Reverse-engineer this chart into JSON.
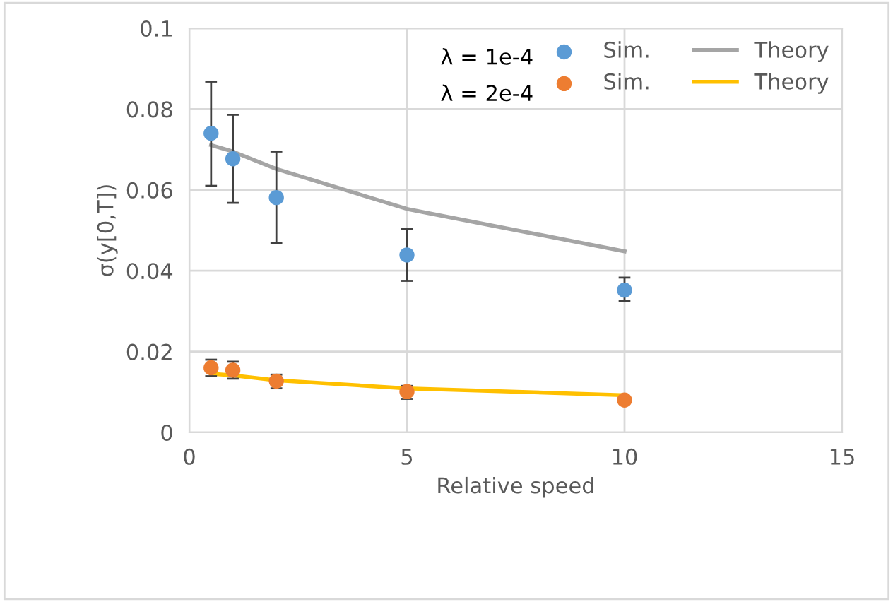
{
  "chart_data": {
    "type": "scatter",
    "xlabel": "Relative speed",
    "ylabel": "σ(y[0,T])",
    "x": [
      0.5,
      1,
      2,
      5,
      10
    ],
    "series": [
      {
        "name": "Sim.",
        "marker": "circle",
        "color": "#5b9bd5",
        "values": [
          0.074,
          0.0677,
          0.0581,
          0.0439,
          0.0352
        ],
        "errors": [
          [
            0.061,
            0.0868
          ],
          [
            0.0568,
            0.0786
          ],
          [
            0.0469,
            0.0695
          ],
          [
            0.0375,
            0.0504
          ],
          [
            0.0325,
            0.0383
          ]
        ]
      },
      {
        "name": "Theory",
        "type": "line",
        "color": "#a5a5a5",
        "values": [
          0.0711,
          0.0695,
          0.0652,
          0.0553,
          0.0448
        ]
      },
      {
        "name": "Sim.",
        "marker": "circle",
        "color": "#ed7d31",
        "values": [
          0.016,
          0.0154,
          0.0127,
          0.0101,
          0.008
        ],
        "errors": [
          [
            0.0139,
            0.018
          ],
          [
            0.0133,
            0.0175
          ],
          [
            0.0109,
            0.0143
          ],
          [
            0.0083,
            0.0115
          ],
          null
        ]
      },
      {
        "name": "Theory",
        "type": "line",
        "color": "#ffc000",
        "values": [
          0.0145,
          0.0141,
          0.0129,
          0.0109,
          0.0092
        ]
      }
    ],
    "annotations": [
      "λ = 1e-4",
      "λ = 2e-4"
    ],
    "xlim": [
      0,
      15
    ],
    "xticks": [
      0,
      5,
      10,
      15
    ],
    "ylim": [
      0,
      0.1
    ],
    "yticks": [
      0,
      0.02,
      0.04,
      0.06,
      0.08,
      0.1
    ],
    "grid": true,
    "legend": "top right"
  }
}
